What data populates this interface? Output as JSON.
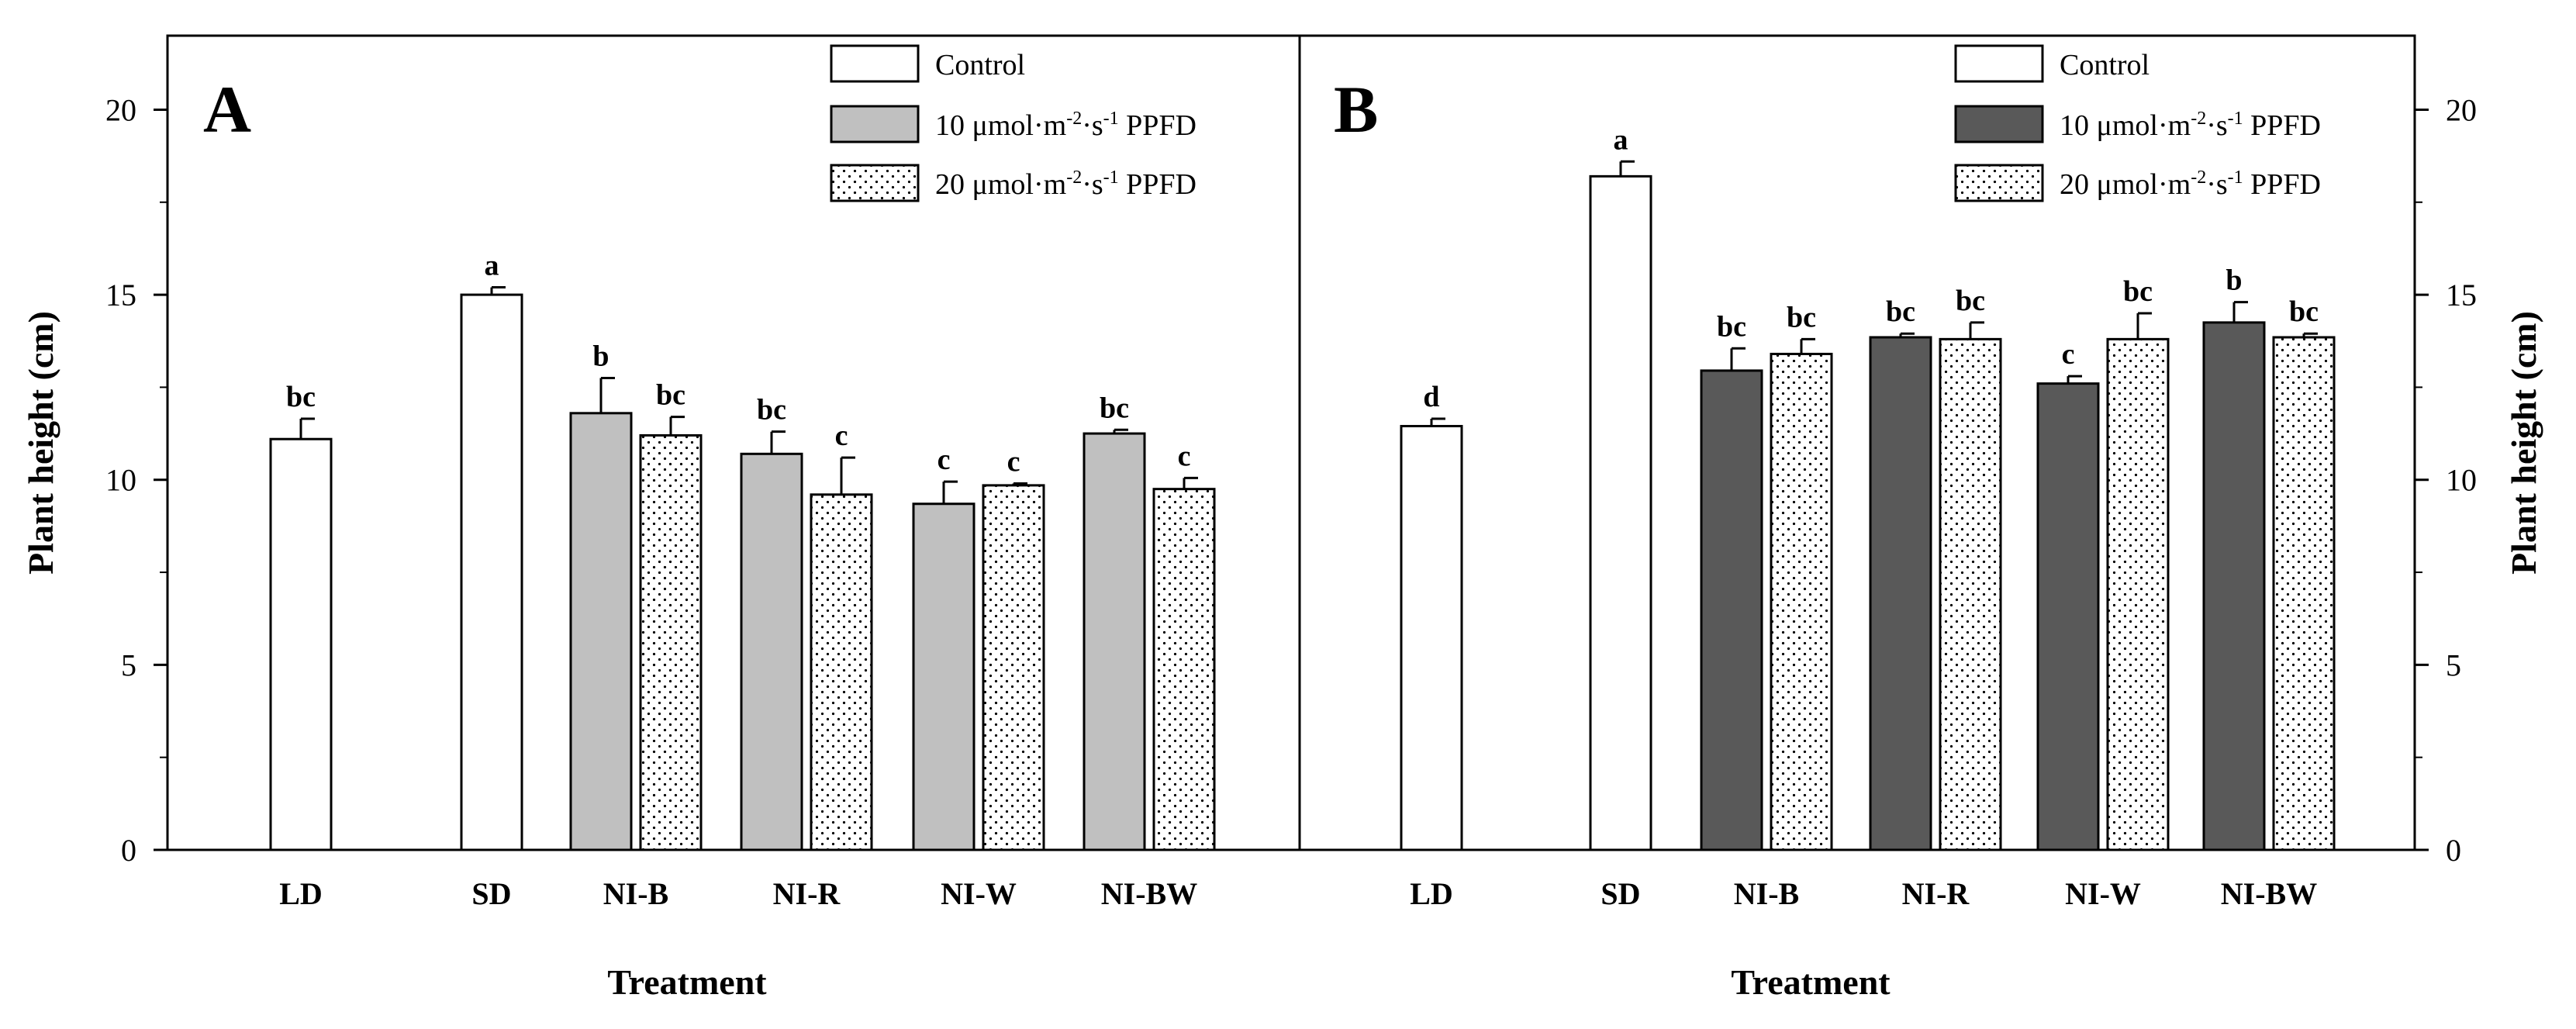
{
  "figure": {
    "colors": {
      "control_fill": "#ffffff",
      "ppfd10_fill_A": "#c0c0c0",
      "ppfd10_fill_B": "#595959",
      "ppfd20_fill": "#ffffff",
      "stroke": "#000000"
    }
  },
  "chart_data": [
    {
      "panel": "A",
      "type": "bar",
      "xlabel": "Treatment",
      "ylabel": "Plant height (cm)",
      "ylim": [
        0,
        22
      ],
      "yticks": [
        "0",
        "5",
        "10",
        "15",
        "20"
      ],
      "ytick_values": [
        0,
        5,
        10,
        15,
        20
      ],
      "y_axis_side": "left",
      "categories": [
        "LD",
        "SD",
        "NI-B",
        "NI-R",
        "NI-W",
        "NI-BW"
      ],
      "legend": {
        "position": "top-right",
        "entries": [
          {
            "key": "control",
            "text": "Control"
          },
          {
            "key": "ppfd10",
            "text_pre": "10 μmol·m",
            "sup1": "-2",
            "mid": "·s",
            "sup2": "-1",
            "text_post": " PPFD"
          },
          {
            "key": "ppfd20",
            "text_pre": "20 μmol·m",
            "sup1": "-2",
            "mid": "·s",
            "sup2": "-1",
            "text_post": " PPFD"
          }
        ]
      },
      "series": [
        {
          "name": "Control",
          "key": "control",
          "values": [
            11.1,
            15.0,
            null,
            null,
            null,
            null
          ],
          "errors": [
            0.55,
            0.2,
            null,
            null,
            null,
            null
          ],
          "labels": [
            "bc",
            "a",
            null,
            null,
            null,
            null
          ]
        },
        {
          "name": "10 μmol·m-2·s-1 PPFD",
          "key": "ppfd10",
          "values": [
            null,
            null,
            11.8,
            10.7,
            9.35,
            11.25
          ],
          "errors": [
            null,
            null,
            0.95,
            0.6,
            0.6,
            0.1
          ],
          "labels": [
            null,
            null,
            "b",
            "bc",
            "c",
            "bc"
          ]
        },
        {
          "name": "20 μmol·m-2·s-1 PPFD",
          "key": "ppfd20",
          "values": [
            null,
            null,
            11.2,
            9.6,
            9.85,
            9.75
          ],
          "errors": [
            null,
            null,
            0.5,
            1.0,
            0.05,
            0.3
          ],
          "labels": [
            null,
            null,
            "bc",
            "c",
            "c",
            "c"
          ]
        }
      ]
    },
    {
      "panel": "B",
      "type": "bar",
      "xlabel": "Treatment",
      "ylabel": "Plant height (cm)",
      "ylim": [
        0,
        22
      ],
      "yticks": [
        "0",
        "5",
        "10",
        "15",
        "20"
      ],
      "ytick_values": [
        0,
        5,
        10,
        15,
        20
      ],
      "y_axis_side": "right",
      "categories": [
        "LD",
        "SD",
        "NI-B",
        "NI-R",
        "NI-W",
        "NI-BW"
      ],
      "legend": {
        "position": "top-right",
        "entries": [
          {
            "key": "control",
            "text": "Control"
          },
          {
            "key": "ppfd10",
            "text_pre": "10 μmol·m",
            "sup1": "-2",
            "mid": "·s",
            "sup2": "-1",
            "text_post": " PPFD"
          },
          {
            "key": "ppfd20",
            "text_pre": "20 μmol·m",
            "sup1": "-2",
            "mid": "·s",
            "sup2": "-1",
            "text_post": " PPFD"
          }
        ]
      },
      "series": [
        {
          "name": "Control",
          "key": "control",
          "values": [
            11.45,
            18.2,
            null,
            null,
            null,
            null
          ],
          "errors": [
            0.2,
            0.4,
            null,
            null,
            null,
            null
          ],
          "labels": [
            "d",
            "a",
            null,
            null,
            null,
            null
          ]
        },
        {
          "name": "10 μmol·m-2·s-1 PPFD",
          "key": "ppfd10",
          "values": [
            null,
            null,
            12.95,
            13.85,
            12.6,
            14.25
          ],
          "errors": [
            null,
            null,
            0.6,
            0.1,
            0.2,
            0.55
          ],
          "labels": [
            null,
            null,
            "bc",
            "bc",
            "c",
            "b"
          ]
        },
        {
          "name": "20 μmol·m-2·s-1 PPFD",
          "key": "ppfd20",
          "values": [
            null,
            null,
            13.4,
            13.8,
            13.8,
            13.85
          ],
          "errors": [
            null,
            null,
            0.4,
            0.45,
            0.7,
            0.1
          ],
          "labels": [
            null,
            null,
            "bc",
            "bc",
            "bc",
            "bc"
          ]
        }
      ]
    }
  ]
}
